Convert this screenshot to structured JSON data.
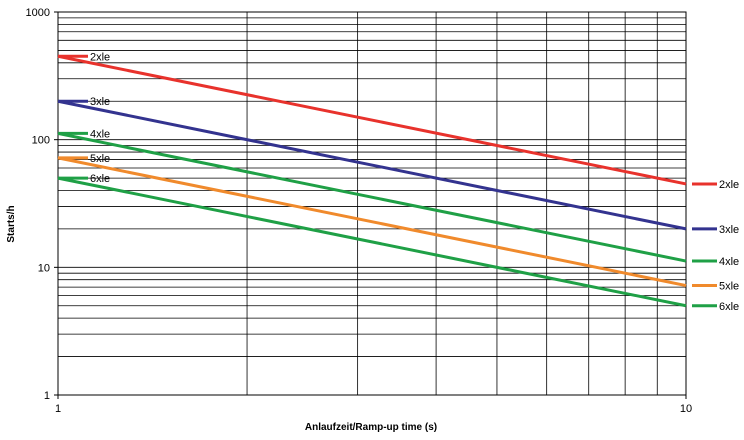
{
  "chart_data": {
    "type": "line",
    "xlabel": "Anlaufzeit/Ramp-up time (s)",
    "ylabel": "Starts/h",
    "x_scale": "log",
    "y_scale": "log",
    "xlim": [
      1,
      10
    ],
    "ylim": [
      1,
      1000
    ],
    "x_ticks": [
      "1",
      "10"
    ],
    "y_ticks": [
      "1",
      "10",
      "100",
      "1000"
    ],
    "grid": true,
    "legend": "inline labels at both line ends",
    "series": [
      {
        "name": "2xle",
        "color": "#e8322c",
        "x": [
          1,
          10
        ],
        "values": [
          450,
          45
        ]
      },
      {
        "name": "3xle",
        "color": "#33338f",
        "x": [
          1,
          10
        ],
        "values": [
          200,
          20
        ]
      },
      {
        "name": "4xle",
        "color": "#1fa046",
        "x": [
          1,
          10
        ],
        "values": [
          112,
          11.2
        ]
      },
      {
        "name": "5xle",
        "color": "#f08a2c",
        "x": [
          1,
          10
        ],
        "values": [
          72,
          7.2
        ]
      },
      {
        "name": "6xle",
        "color": "#1fa046",
        "x": [
          1,
          10
        ],
        "values": [
          50,
          5
        ]
      }
    ]
  }
}
